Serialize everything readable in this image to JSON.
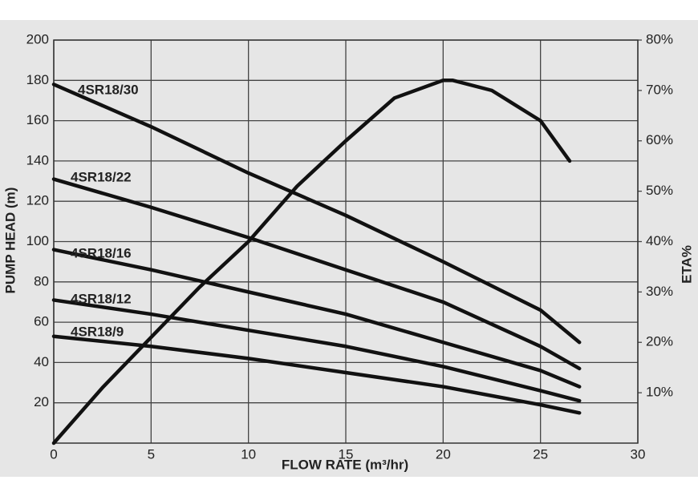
{
  "chart_data": {
    "type": "line",
    "x_label": "FLOW RATE (m³/hr)",
    "y_label": "PUMP HEAD (m)",
    "y2_label": "ETA%",
    "xlim": [
      0,
      30
    ],
    "xticks": [
      0,
      5,
      10,
      15,
      20,
      25,
      30
    ],
    "ylim": [
      0,
      200
    ],
    "yticks": [
      20,
      40,
      60,
      80,
      100,
      120,
      140,
      160,
      180,
      200
    ],
    "y2lim": [
      0,
      80
    ],
    "y2ticks": [
      {
        "value": 10,
        "label": "10%"
      },
      {
        "value": 20,
        "label": "20%"
      },
      {
        "value": 30,
        "label": "30%"
      },
      {
        "value": 40,
        "label": "40%"
      },
      {
        "value": 50,
        "label": "50%"
      },
      {
        "value": 60,
        "label": "60%"
      },
      {
        "value": 70,
        "label": "70%"
      },
      {
        "value": 80,
        "label": "80%"
      }
    ],
    "grid": true,
    "series": [
      {
        "name": "4SR18/30",
        "color": "#111111",
        "x": [
          0,
          5,
          10,
          15,
          20,
          25,
          27
        ],
        "values": [
          178,
          157,
          134,
          113,
          90,
          66,
          50
        ]
      },
      {
        "name": "4SR18/22",
        "color": "#111111",
        "x": [
          0,
          5,
          10,
          15,
          20,
          25,
          27
        ],
        "values": [
          131,
          117,
          102,
          86,
          70,
          48,
          37
        ]
      },
      {
        "name": "4SR18/16",
        "color": "#111111",
        "x": [
          0,
          5,
          10,
          15,
          20,
          25,
          27
        ],
        "values": [
          96,
          86,
          75,
          64,
          50,
          36,
          28
        ]
      },
      {
        "name": "4SR18/12",
        "color": "#111111",
        "x": [
          0,
          5,
          10,
          15,
          20,
          25,
          27
        ],
        "values": [
          71,
          64,
          56,
          48,
          38,
          26,
          21
        ]
      },
      {
        "name": "4SR18/9",
        "color": "#111111",
        "x": [
          0,
          5,
          10,
          15,
          20,
          25,
          27
        ],
        "values": [
          53,
          48,
          42,
          35,
          28,
          19,
          15
        ]
      },
      {
        "axis": "y2",
        "color": "#111111",
        "x": [
          0,
          2.5,
          5,
          7.5,
          10,
          12.5,
          15,
          17.5,
          20,
          20.5,
          22.5,
          25,
          26.5
        ],
        "values": [
          0,
          11,
          21,
          31,
          40,
          51,
          60,
          68.5,
          72,
          72,
          70,
          64,
          56
        ]
      }
    ]
  }
}
